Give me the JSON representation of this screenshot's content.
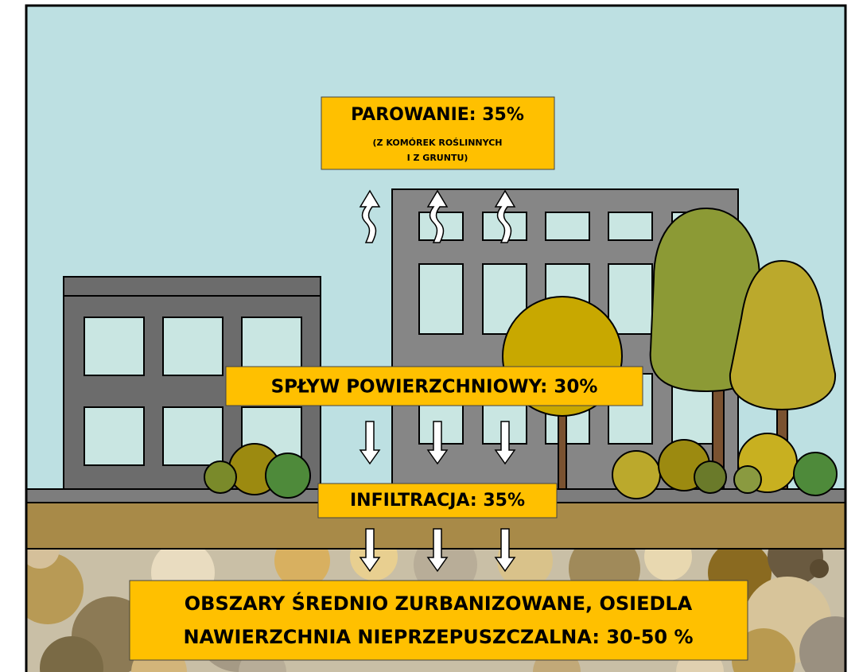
{
  "evaporation": {
    "title": "PAROWANIE: 35%",
    "note": [
      "(Z KOMÓREK ROŚLINNYCH",
      "I Z GRUNTU)"
    ]
  },
  "runoff": "SPŁYW POWIERZCHNIOWY: 30%",
  "infiltration": "INFILTRACJA: 35%",
  "caption": [
    "OBSZARY ŚREDNIO ZURBANIZOWANE, OSIEDLA",
    "NAWIERZCHNIA NIEPRZEPUSZCZALNA: 30-50 %"
  ]
}
